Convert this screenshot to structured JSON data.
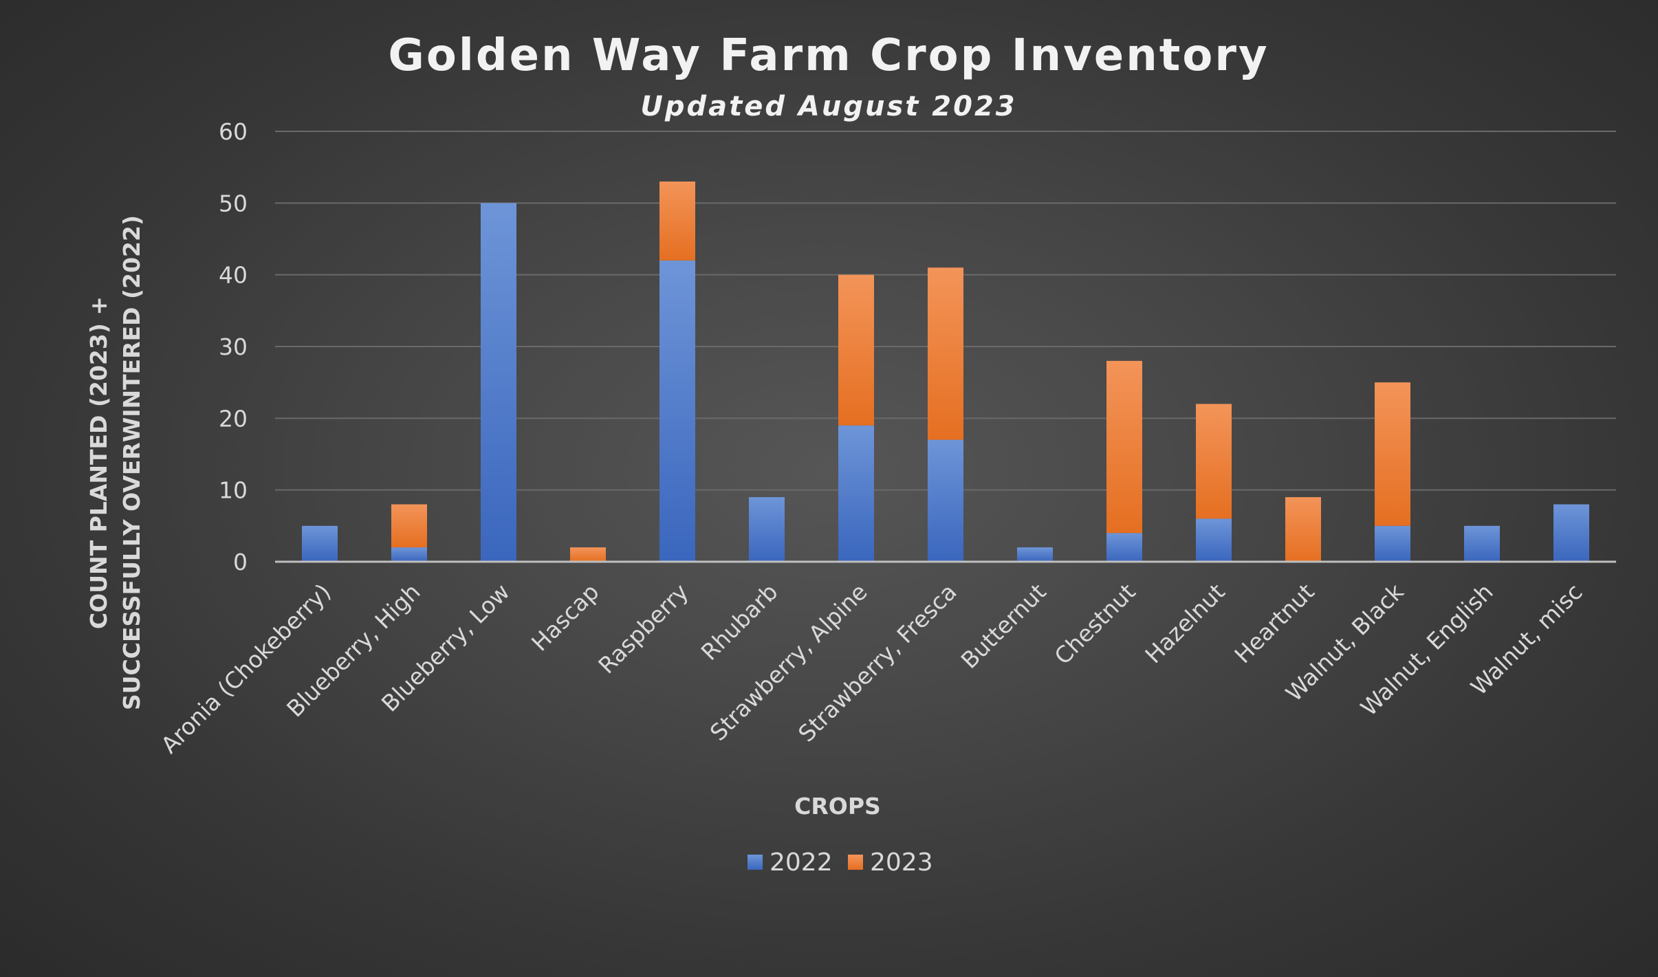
{
  "chart_data": {
    "type": "bar",
    "stacked": true,
    "title": "Golden Way Farm Crop Inventory",
    "subtitle": "Updated August 2023",
    "xlabel": "CROPS",
    "ylabel_lines": [
      "COUNT PLANTED (2023) +",
      "SUCCESSFULLY OVERWINTERED (2022)"
    ],
    "ylim": [
      0,
      60
    ],
    "yticks": [
      0,
      10,
      20,
      30,
      40,
      50,
      60
    ],
    "grid": true,
    "legend_position": "bottom",
    "categories": [
      "Aronia (Chokeberry)",
      "Blueberry, High",
      "Blueberry, Low",
      "Hascap",
      "Raspberry",
      "Rhubarb",
      "Strawberry, Alpine",
      "Strawberry, Fresca",
      "Butternut",
      "Chestnut",
      "Hazelnut",
      "Heartnut",
      "Walnut, Black",
      "Walnut, English",
      "Walnut, misc"
    ],
    "series": [
      {
        "name": "2022",
        "color": "#4472C4",
        "values": [
          5,
          2,
          50,
          0,
          42,
          9,
          19,
          17,
          2,
          4,
          6,
          0,
          5,
          5,
          8
        ]
      },
      {
        "name": "2023",
        "color": "#ED7D31",
        "values": [
          0,
          6,
          0,
          2,
          11,
          0,
          21,
          24,
          0,
          24,
          16,
          9,
          20,
          0,
          0
        ]
      }
    ]
  }
}
